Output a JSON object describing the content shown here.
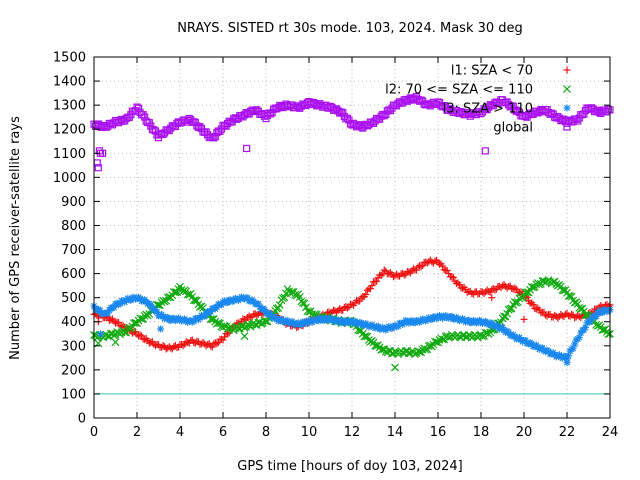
{
  "chart_data": {
    "type": "scatter",
    "title": "NRAYS. SISTED rt 30s mode. 103, 2024. Mask 30 deg",
    "xlabel": "GPS time [hours of doy 103, 2024]",
    "ylabel": "Number of GPS receiver-satellite rays",
    "xlim": [
      0,
      24
    ],
    "ylim": [
      0,
      1500
    ],
    "xticks": [
      0,
      2,
      4,
      6,
      8,
      10,
      12,
      14,
      16,
      18,
      20,
      22,
      24
    ],
    "yticks": [
      0,
      100,
      200,
      300,
      400,
      500,
      600,
      700,
      800,
      900,
      1000,
      1100,
      1200,
      1300,
      1400,
      1500
    ],
    "grid": true,
    "legend_position": "top-right",
    "threshold_line": {
      "y": 100,
      "color": "#33cccc"
    },
    "series": [
      {
        "name": "l1: SZA < 70",
        "marker": "+",
        "color": "#ee1111",
        "x": [
          0,
          0.5,
          1,
          1.5,
          2,
          2.5,
          3,
          3.5,
          4,
          4.5,
          5,
          5.5,
          6,
          6.5,
          7,
          7.5,
          8,
          8.5,
          9,
          9.5,
          10,
          10.5,
          11,
          11.5,
          12,
          12.5,
          13,
          13.5,
          14,
          14.5,
          15,
          15.5,
          16,
          16.5,
          17,
          17.5,
          18,
          18.5,
          19,
          19.5,
          20,
          20.5,
          21,
          21.5,
          22,
          22.5,
          23,
          23.5,
          24
        ],
        "y": [
          430,
          420,
          400,
          370,
          350,
          320,
          300,
          290,
          300,
          320,
          310,
          300,
          330,
          380,
          410,
          430,
          440,
          420,
          390,
          380,
          400,
          420,
          440,
          450,
          470,
          500,
          560,
          610,
          590,
          600,
          620,
          650,
          650,
          600,
          550,
          520,
          520,
          530,
          550,
          540,
          510,
          460,
          430,
          420,
          430,
          420,
          430,
          460,
          470
        ]
      },
      {
        "name": "l2: 70 <= SZA <= 110",
        "marker": "x",
        "color": "#11aa11",
        "x": [
          0,
          0.5,
          1,
          1.5,
          2,
          2.5,
          3,
          3.5,
          4,
          4.5,
          5,
          5.5,
          6,
          6.5,
          7,
          7.5,
          8,
          8.5,
          9,
          9.5,
          10,
          10.5,
          11,
          11.5,
          12,
          12.5,
          13,
          13.5,
          14,
          14.5,
          15,
          15.5,
          16,
          16.5,
          17,
          17.5,
          18,
          18.5,
          19,
          19.5,
          20,
          20.5,
          21,
          21.5,
          22,
          22.5,
          23,
          23.5,
          24
        ],
        "y": [
          340,
          340,
          350,
          360,
          400,
          430,
          470,
          500,
          540,
          510,
          460,
          410,
          380,
          370,
          380,
          390,
          400,
          450,
          530,
          510,
          440,
          420,
          410,
          400,
          400,
          350,
          310,
          280,
          270,
          275,
          270,
          290,
          320,
          340,
          340,
          340,
          340,
          360,
          410,
          470,
          510,
          550,
          570,
          560,
          520,
          470,
          420,
          380,
          350
        ]
      },
      {
        "name": "l3: SZA > 110",
        "marker": "*",
        "color": "#1a88ee",
        "x": [
          0,
          0.5,
          1,
          1.5,
          2,
          2.5,
          3,
          3.5,
          4,
          4.5,
          5,
          5.5,
          6,
          6.5,
          7,
          7.5,
          8,
          8.5,
          9,
          9.5,
          10,
          10.5,
          11,
          11.5,
          12,
          12.5,
          13,
          13.5,
          14,
          14.5,
          15,
          15.5,
          16,
          16.5,
          17,
          17.5,
          18,
          18.5,
          19,
          19.5,
          20,
          20.5,
          21,
          21.5,
          22,
          22.5,
          23,
          23.5,
          24
        ],
        "y": [
          460,
          430,
          470,
          490,
          500,
          480,
          430,
          410,
          410,
          400,
          420,
          450,
          480,
          490,
          500,
          480,
          440,
          410,
          400,
          390,
          400,
          410,
          410,
          400,
          400,
          390,
          380,
          370,
          380,
          400,
          400,
          410,
          420,
          420,
          410,
          400,
          400,
          390,
          370,
          340,
          320,
          300,
          280,
          260,
          250,
          330,
          400,
          440,
          450
        ]
      },
      {
        "name": "global",
        "marker": "square",
        "color": "#aa11ee",
        "x": [
          0,
          0.5,
          1,
          1.5,
          2,
          2.5,
          3,
          3.5,
          4,
          4.5,
          5,
          5.5,
          6,
          6.5,
          7,
          7.5,
          8,
          8.5,
          9,
          9.5,
          10,
          10.5,
          11,
          11.5,
          12,
          12.5,
          13,
          13.5,
          14,
          14.5,
          15,
          15.5,
          16,
          16.5,
          17,
          17.5,
          18,
          18.5,
          19,
          19.5,
          20,
          20.5,
          21,
          21.5,
          22,
          22.5,
          23,
          23.5,
          24
        ],
        "y": [
          1220,
          1210,
          1230,
          1240,
          1290,
          1230,
          1170,
          1200,
          1230,
          1240,
          1200,
          1160,
          1210,
          1240,
          1260,
          1280,
          1250,
          1290,
          1300,
          1290,
          1310,
          1300,
          1290,
          1270,
          1220,
          1210,
          1230,
          1260,
          1300,
          1320,
          1330,
          1300,
          1310,
          1280,
          1270,
          1260,
          1270,
          1300,
          1320,
          1290,
          1250,
          1270,
          1280,
          1250,
          1230,
          1240,
          1290,
          1270,
          1280
        ]
      }
    ],
    "outliers": [
      {
        "series": "global",
        "x": [
          0.15,
          0.2,
          0.25,
          0.3,
          0.4,
          7.1,
          18.2
        ],
        "y": [
          1060,
          1040,
          1110,
          1100,
          1100,
          1120,
          1110
        ]
      },
      {
        "series": "l1: SZA < 70",
        "x": [
          0.2,
          18.5,
          20.0
        ],
        "y": [
          400,
          500,
          410
        ]
      },
      {
        "series": "l2: 70 <= SZA <= 110",
        "x": [
          0.2,
          1.0,
          7.0,
          14.0
        ],
        "y": [
          310,
          315,
          340,
          210
        ]
      },
      {
        "series": "l3: SZA > 110",
        "x": [
          0.3,
          3.1,
          22.0
        ],
        "y": [
          350,
          370,
          230
        ]
      }
    ]
  }
}
